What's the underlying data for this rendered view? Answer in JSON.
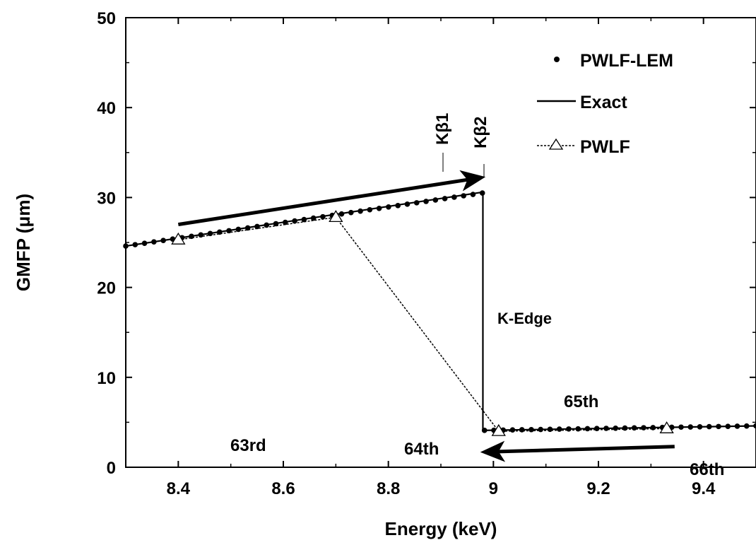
{
  "chart_data": {
    "type": "line",
    "xlabel": "Energy (keV)",
    "ylabel": "GMFP (μm)",
    "xlim": [
      8.3,
      9.5
    ],
    "ylim": [
      0,
      50
    ],
    "x_ticks": [
      "8.4",
      "8.6",
      "8.8",
      "9",
      "9.2",
      "9.4"
    ],
    "y_ticks": [
      "0",
      "10",
      "20",
      "30",
      "40",
      "50"
    ],
    "grid": false,
    "legend_position": "top-right",
    "legend": [
      "PWLF-LEM",
      "Exact",
      "PWLF"
    ],
    "series": [
      {
        "name": "PWLF-LEM",
        "style": "dots",
        "segments": [
          {
            "x_start": 8.3,
            "x_end": 8.979,
            "y_start": 24.6,
            "y_end": 30.5,
            "n_points": 39
          },
          {
            "x_start": 8.983,
            "x_end": 9.5,
            "y_start": 4.1,
            "y_end": 4.6,
            "n_points": 30
          }
        ]
      },
      {
        "name": "Exact",
        "style": "solid",
        "x": [
          8.3,
          8.98,
          8.98,
          9.5
        ],
        "y": [
          24.6,
          30.6,
          4.1,
          4.6
        ]
      },
      {
        "name": "PWLF",
        "style": "dotted-triangles",
        "x": [
          8.4,
          8.7,
          9.01,
          9.33
        ],
        "y": [
          25.3,
          27.8,
          4.0,
          4.3
        ]
      }
    ],
    "annotations": {
      "k_edge": "K-Edge",
      "kb1": "Kβ1",
      "kb2": "Kβ2",
      "kb1_x": 8.91,
      "kb2_x": 8.985,
      "label_63rd": "63rd",
      "label_64th": "64th",
      "label_65th": "65th",
      "label_66th": "66th"
    },
    "arrows": [
      {
        "from": [
          8.4,
          27.0
        ],
        "to": [
          8.975,
          32.2
        ]
      },
      {
        "from": [
          9.345,
          2.3
        ],
        "to": [
          8.985,
          1.7
        ]
      }
    ]
  }
}
